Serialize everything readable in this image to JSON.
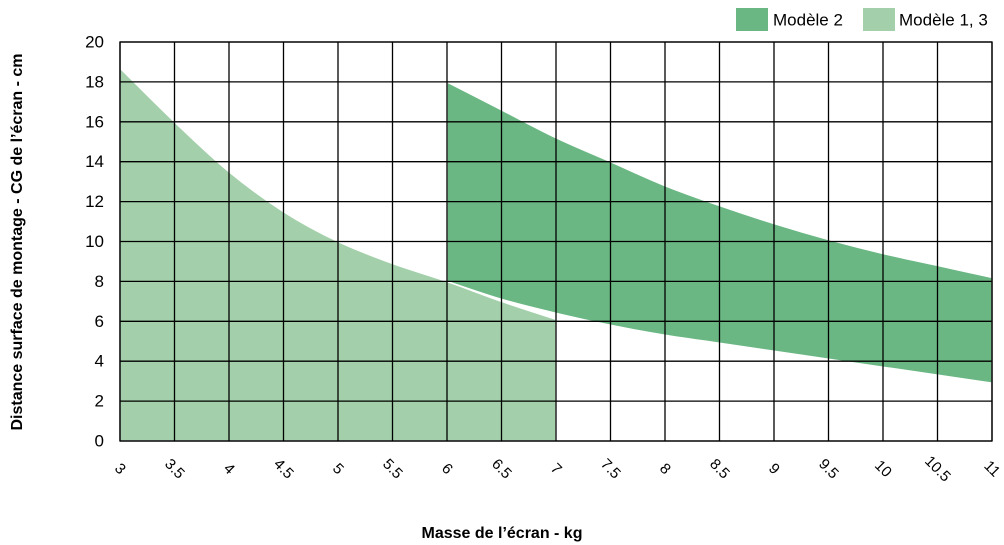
{
  "chart_data": {
    "type": "area",
    "xlabel": "Masse de l’écran - kg",
    "ylabel": "Distance surface de montage - CG de l’écran - cm",
    "xlim": [
      3,
      11
    ],
    "ylim": [
      0,
      20
    ],
    "x_ticks": [
      3,
      3.5,
      4,
      4.5,
      5,
      5.5,
      6,
      6.5,
      7,
      7.5,
      8,
      8.5,
      9,
      9.5,
      10,
      10.5,
      11
    ],
    "y_ticks": [
      0,
      2,
      4,
      6,
      8,
      10,
      12,
      14,
      16,
      18,
      20
    ],
    "grid": true,
    "legend_position": "top-right",
    "series": [
      {
        "name": "Modèle 2",
        "color": "#6bb784",
        "x": [
          6,
          6.5,
          7,
          7.5,
          8,
          8.5,
          9,
          9.5,
          10,
          10.5,
          11
        ],
        "upper": [
          18.0,
          16.6,
          15.2,
          14.0,
          12.8,
          11.8,
          10.9,
          10.1,
          9.4,
          8.8,
          8.2
        ],
        "lower": [
          8.0,
          7.1,
          6.4,
          5.8,
          5.3,
          4.9,
          4.5,
          4.1,
          3.7,
          3.3,
          2.9
        ]
      },
      {
        "name": "Modèle 1, 3",
        "color": "#a3d0aa",
        "x": [
          3,
          3.5,
          4,
          4.5,
          5,
          5.5,
          6,
          6.5,
          7
        ],
        "upper": [
          18.7,
          16.0,
          13.5,
          11.5,
          10.0,
          8.9,
          8.0,
          7.0,
          6.1
        ],
        "lower": [
          0,
          0,
          0,
          0,
          0,
          0,
          0,
          0,
          0
        ]
      }
    ]
  }
}
